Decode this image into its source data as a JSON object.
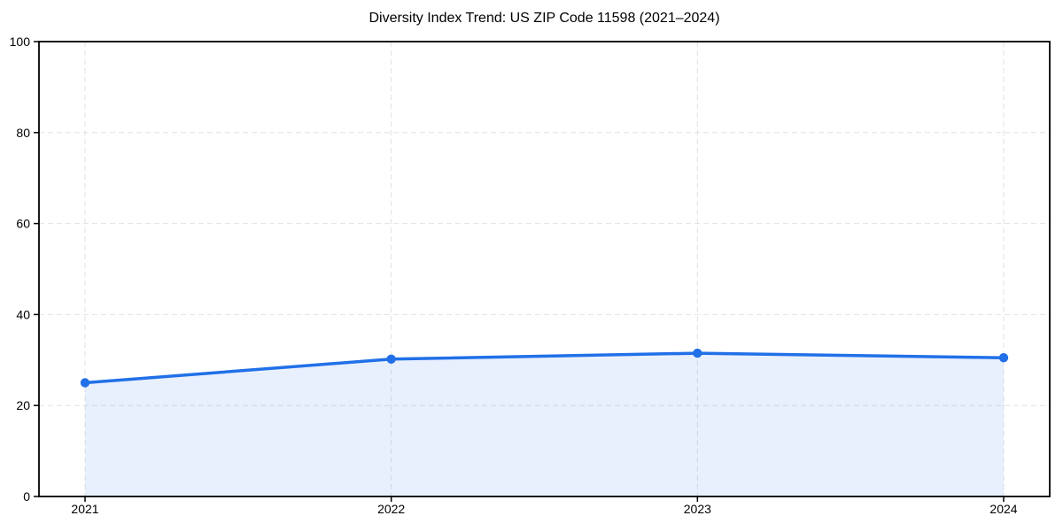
{
  "chart_data": {
    "type": "area",
    "title": "Diversity Index Trend: US ZIP Code 11598 (2021–2024)",
    "categories": [
      "2021",
      "2022",
      "2023",
      "2024"
    ],
    "x": [
      2021,
      2022,
      2023,
      2024
    ],
    "series": [
      {
        "name": "Diversity Index",
        "values": [
          25.0,
          30.2,
          31.5,
          30.5
        ]
      }
    ],
    "xlabel": "",
    "ylabel": "",
    "ylim": [
      0,
      100
    ],
    "yticks": [
      0,
      20,
      40,
      60,
      80,
      100
    ],
    "ytick_labels": [
      "0",
      "20",
      "40",
      "60",
      "80",
      "100"
    ],
    "grid": true,
    "grid_style": "dashed",
    "legend": false,
    "marker": "circle",
    "colors": {
      "line": "#2170e8",
      "marker": "#2170e8",
      "area_fill": "rgba(33,112,232,0.10)",
      "grid": "#e2e2e2",
      "axis": "#000000",
      "text": "#000000",
      "background": "#ffffff"
    }
  }
}
